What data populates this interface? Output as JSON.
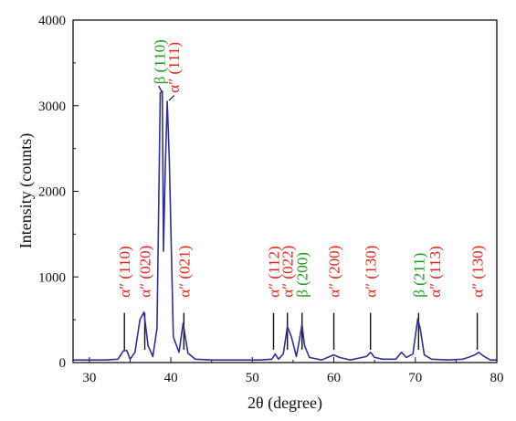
{
  "chart_data": {
    "type": "line",
    "xlabel": "2θ (degree)",
    "ylabel": "Intensity (counts)",
    "xlim": [
      28,
      80
    ],
    "ylim": [
      0,
      4000
    ],
    "x_ticks": [
      "30",
      "40",
      "50",
      "60",
      "70",
      "80"
    ],
    "y_ticks": [
      "0",
      "1000",
      "2000",
      "3000",
      "4000"
    ],
    "grid": false,
    "legend": "none",
    "colors": {
      "line": "#2e3192",
      "alpha_label": "#e0261b",
      "beta_label": "#1e9a1e",
      "axis": "#111111"
    },
    "series": [
      {
        "x": [
          28,
          30,
          32,
          33.5,
          34.2,
          34.6,
          35,
          35.6,
          36.2,
          36.7,
          37.2,
          37.8,
          38.3,
          38.7,
          38.95,
          39.1,
          39.3,
          39.55,
          39.8,
          40.3,
          41,
          41.5,
          42.1,
          43,
          45,
          48,
          51,
          52.4,
          52.8,
          53.2,
          53.8,
          54.3,
          54.8,
          55.4,
          55.8,
          56.1,
          56.4,
          57,
          58.5,
          59.5,
          60,
          60.7,
          62,
          64,
          64.5,
          65,
          66,
          67.6,
          68.3,
          68.9,
          69.7,
          70.3,
          70.6,
          71.1,
          72,
          74,
          75.8,
          76.5,
          77.3,
          77.8,
          78.3,
          79.2,
          80
        ],
        "y": [
          30,
          30,
          30,
          40,
          140,
          140,
          40,
          120,
          500,
          590,
          200,
          70,
          400,
          3150,
          3170,
          1300,
          2200,
          3050,
          2400,
          300,
          120,
          460,
          110,
          40,
          30,
          30,
          30,
          40,
          100,
          40,
          100,
          420,
          300,
          70,
          280,
          450,
          200,
          60,
          30,
          70,
          90,
          60,
          30,
          70,
          120,
          60,
          40,
          40,
          120,
          60,
          100,
          510,
          400,
          90,
          40,
          30,
          40,
          60,
          90,
          120,
          80,
          30,
          30
        ]
      }
    ],
    "annotations": [
      {
        "x": 34.3,
        "text": "α″ (110)",
        "color": "alpha"
      },
      {
        "x": 36.8,
        "text": "α″ (020)",
        "color": "alpha"
      },
      {
        "x": 38.6,
        "text": "β (110)",
        "color": "beta"
      },
      {
        "x": 40.3,
        "text": "α″ (111)",
        "color": "alpha"
      },
      {
        "x": 41.6,
        "text": "α″ (021)",
        "color": "alpha"
      },
      {
        "x": 52.6,
        "text": "α″ (112)",
        "color": "alpha"
      },
      {
        "x": 54.3,
        "text": "α″ (022)",
        "color": "alpha"
      },
      {
        "x": 56.1,
        "text": "β (200)",
        "color": "beta"
      },
      {
        "x": 60.0,
        "text": "α″ (200)",
        "color": "alpha"
      },
      {
        "x": 64.5,
        "text": "α″ (130)",
        "color": "alpha"
      },
      {
        "x": 70.4,
        "text": "β (211)",
        "color": "beta"
      },
      {
        "x": 72.4,
        "text": "α″ (113)",
        "color": "alpha"
      },
      {
        "x": 77.6,
        "text": "α″ (130)",
        "color": "alpha"
      }
    ]
  }
}
